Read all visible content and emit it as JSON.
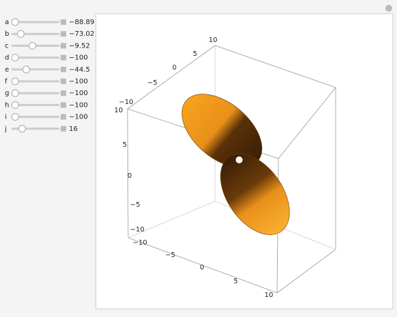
{
  "controls": [
    {
      "label": "a",
      "value": "−88.89"
    },
    {
      "label": "b",
      "value": "−73.02"
    },
    {
      "label": "c",
      "value": "−9.52"
    },
    {
      "label": "d",
      "value": "−100"
    },
    {
      "label": "e",
      "value": "−44.5"
    },
    {
      "label": "f",
      "value": "−100"
    },
    {
      "label": "g",
      "value": "−100"
    },
    {
      "label": "h",
      "value": "−100"
    },
    {
      "label": "i",
      "value": "−100"
    },
    {
      "label": "j",
      "value": "16"
    }
  ],
  "plot": {
    "vertical_axis_ticks": [
      "10",
      "5",
      "0",
      "−5",
      "−10"
    ],
    "top_axis_ticks": [
      "10",
      "5",
      "0",
      "−5",
      "−10"
    ],
    "bottom_axis_ticks": [
      "−10",
      "−5",
      "0",
      "5",
      "10"
    ]
  }
}
